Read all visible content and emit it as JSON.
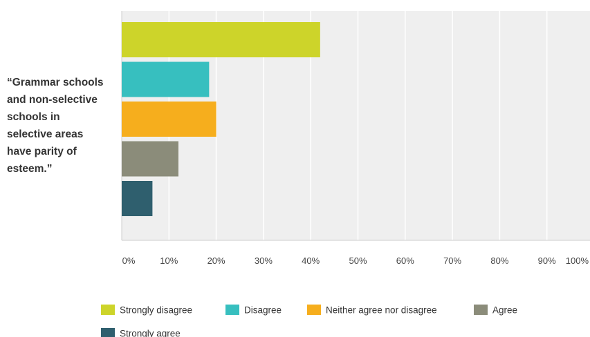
{
  "chart_data": {
    "type": "bar",
    "orientation": "horizontal",
    "categories": [
      "“Grammar schools and non-selective schools in selective areas have parity of esteem.”"
    ],
    "category_label_lines": [
      "“Grammar schools",
      "and non-selective",
      "schools in",
      "selective areas",
      "have parity of",
      "esteem.”"
    ],
    "series": [
      {
        "name": "Strongly disagree",
        "values": [
          42
        ],
        "color": "#cdd42a"
      },
      {
        "name": "Disagree",
        "values": [
          18.5
        ],
        "color": "#37bfbf"
      },
      {
        "name": "Neither agree nor disagree",
        "values": [
          20
        ],
        "color": "#f6ae1d"
      },
      {
        "name": "Agree",
        "values": [
          12
        ],
        "color": "#8b8c7a"
      },
      {
        "name": "Strongly agree",
        "values": [
          6.5
        ],
        "color": "#2f5f6e"
      }
    ],
    "x_ticks": [
      "0%",
      "10%",
      "20%",
      "30%",
      "40%",
      "50%",
      "60%",
      "70%",
      "80%",
      "90%",
      "100%"
    ],
    "xlim": [
      0,
      100
    ],
    "title": "",
    "xlabel": "",
    "ylabel": "",
    "grid": true,
    "legend_position": "bottom"
  },
  "colors": {
    "plot_background": "#efefef",
    "gridline": "#ffffff",
    "axis": "#cccccc"
  }
}
